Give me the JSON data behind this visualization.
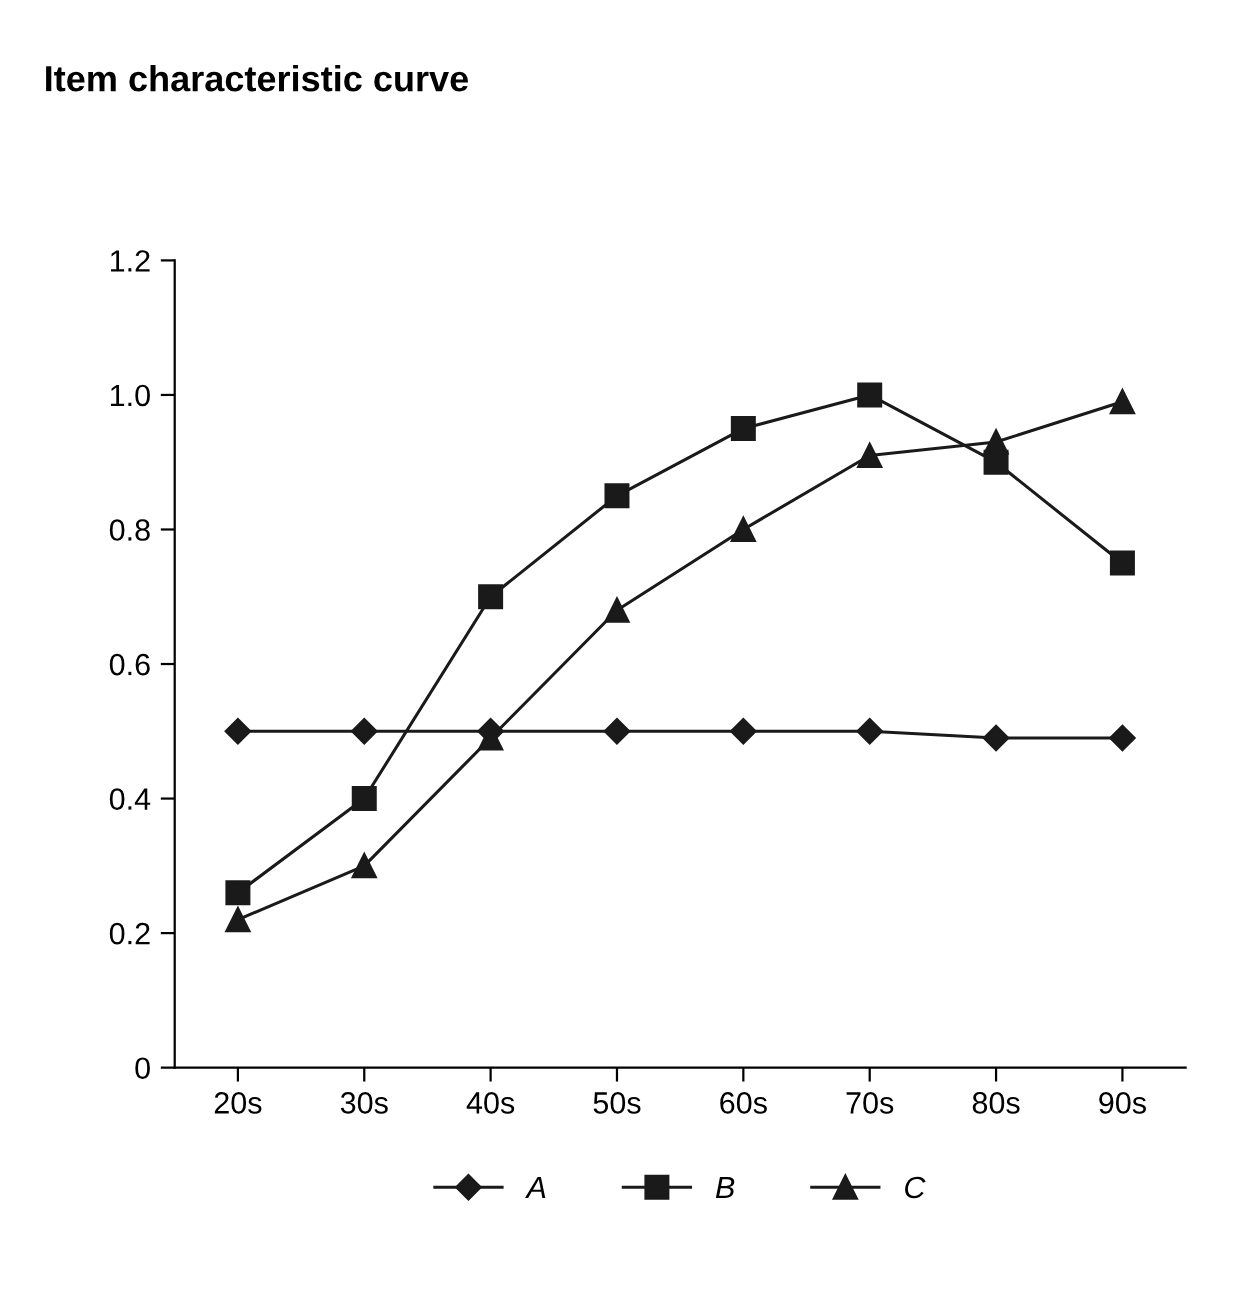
{
  "chart_data": {
    "type": "line",
    "title": "Item characteristic curve",
    "categories": [
      "20s",
      "30s",
      "40s",
      "50s",
      "60s",
      "70s",
      "80s",
      "90s"
    ],
    "series": [
      {
        "name": "A",
        "color": "#1a1a1a",
        "marker": "diamond",
        "values": [
          0.5,
          0.5,
          0.5,
          0.5,
          0.5,
          0.5,
          0.49,
          0.49
        ]
      },
      {
        "name": "B",
        "color": "#1a1a1a",
        "marker": "square",
        "values": [
          0.26,
          0.4,
          0.7,
          0.85,
          0.95,
          1.0,
          0.9,
          0.75
        ]
      },
      {
        "name": "C",
        "color": "#1a1a1a",
        "marker": "triangle",
        "values": [
          0.22,
          0.3,
          0.49,
          0.68,
          0.8,
          0.91,
          0.93,
          0.99
        ]
      }
    ],
    "ylim": [
      0,
      1.2
    ],
    "yticks": [
      0,
      0.2,
      0.4,
      0.6,
      0.8,
      {
        "value": 1,
        "label": "1.0"
      },
      1.2
    ],
    "legend": "bottom",
    "grid": false,
    "line_style": "solid"
  }
}
